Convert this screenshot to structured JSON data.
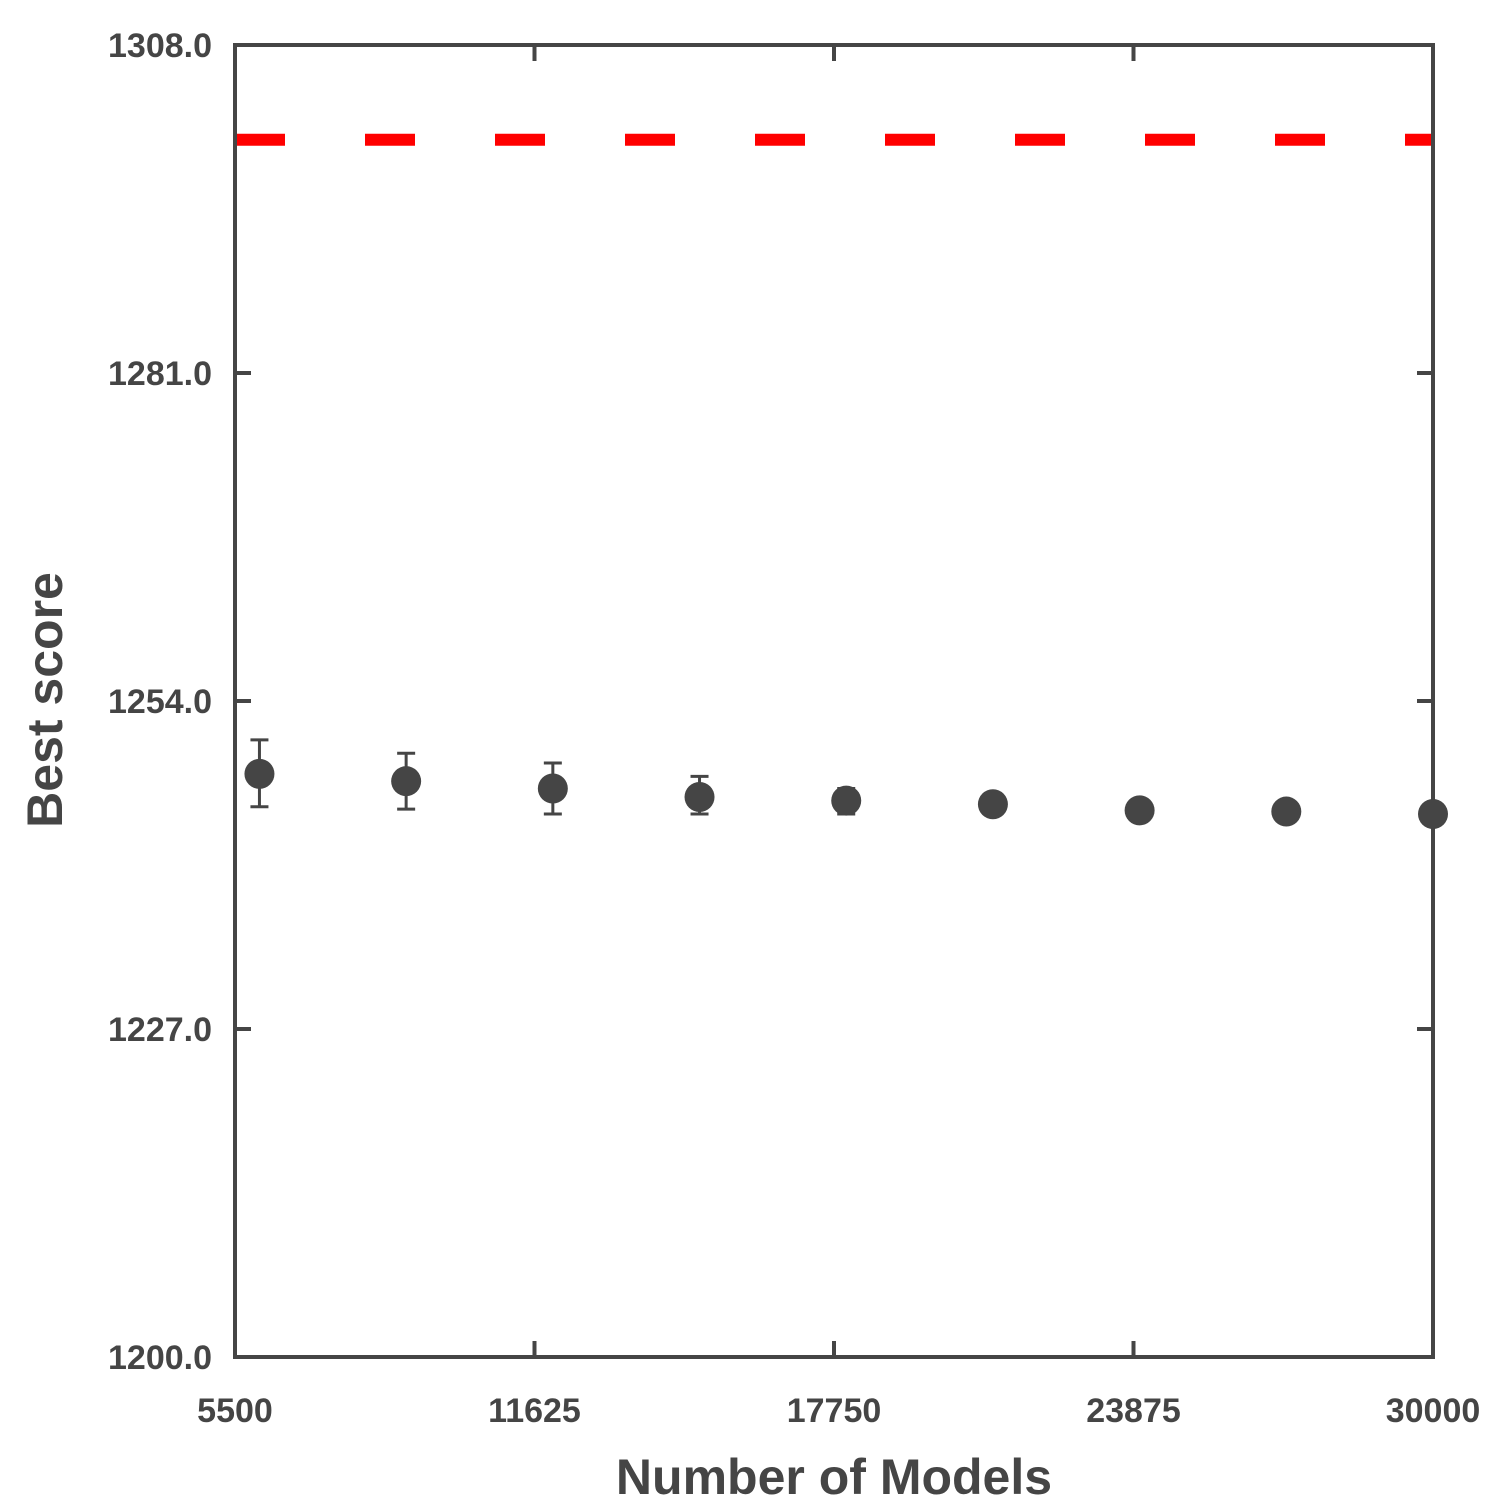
{
  "chart_data": {
    "type": "scatter",
    "title": "",
    "xlabel": "Number of Models",
    "ylabel": "Best score",
    "xlim": [
      5500,
      30000
    ],
    "ylim": [
      1200,
      1308
    ],
    "xticks": [
      5500,
      11625,
      17750,
      23875,
      30000
    ],
    "xtick_labels": [
      "5500",
      "11625",
      "17750",
      "23875",
      "30000"
    ],
    "yticks": [
      1200,
      1227,
      1254,
      1281,
      1308
    ],
    "ytick_labels": [
      "1200.0",
      "1227.0",
      "1254.0",
      "1281.0",
      "1308.0"
    ],
    "grid": false,
    "legend": "none",
    "series": [
      {
        "marker": "circle",
        "color": "#454545",
        "points": [
          {
            "x": 6000,
            "y": 1248.0,
            "err_low": 1245.3,
            "err_high": 1250.8
          },
          {
            "x": 9000,
            "y": 1247.4,
            "err_low": 1245.1,
            "err_high": 1249.7
          },
          {
            "x": 12000,
            "y": 1246.8,
            "err_low": 1244.7,
            "err_high": 1248.9
          },
          {
            "x": 15000,
            "y": 1246.1,
            "err_low": 1244.7,
            "err_high": 1247.8
          },
          {
            "x": 18000,
            "y": 1245.8,
            "err_low": 1244.7,
            "err_high": 1246.8
          },
          {
            "x": 21000,
            "y": 1245.5,
            "err_low": 1244.7,
            "err_high": 1246.3
          },
          {
            "x": 24000,
            "y": 1245.0
          },
          {
            "x": 27000,
            "y": 1244.9
          },
          {
            "x": 30000,
            "y": 1244.7
          }
        ]
      }
    ],
    "reference_line": {
      "y": 1300.2,
      "color": "#ff0000",
      "style": "dashed"
    }
  }
}
